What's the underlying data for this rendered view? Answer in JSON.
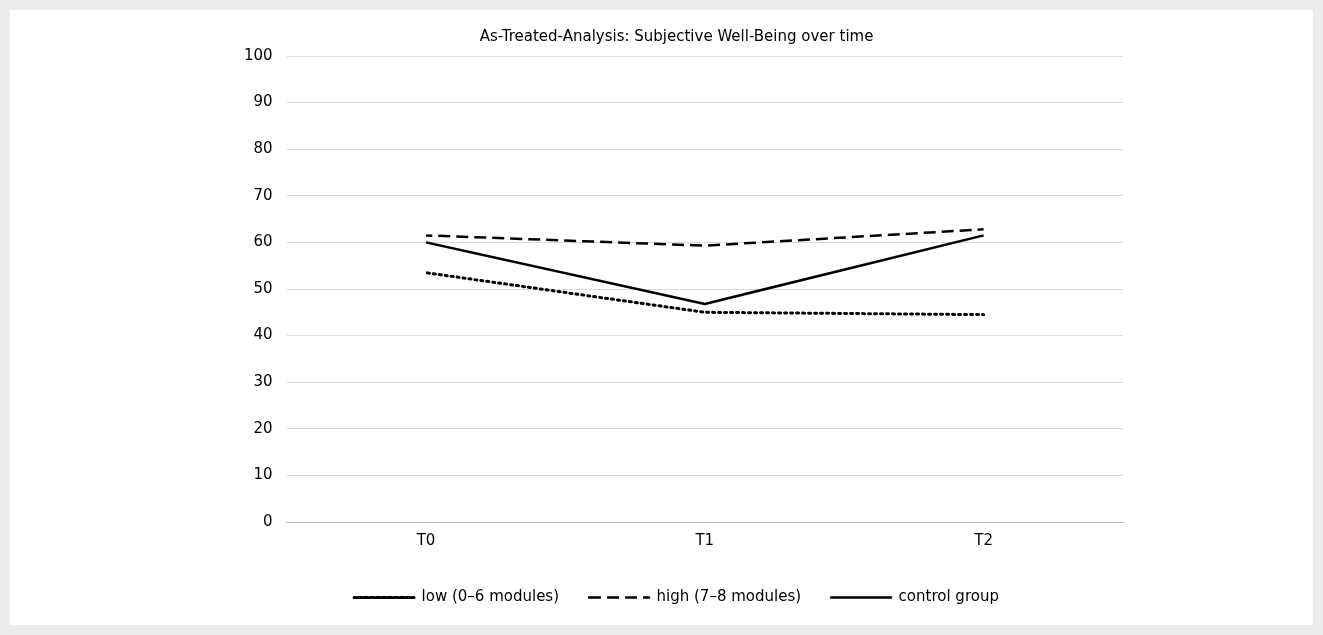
{
  "chart_data": {
    "type": "line",
    "title": "As-Treated-Analysis: Subjective Well-Being over time",
    "categories": [
      "T0",
      "T1",
      "T2"
    ],
    "series": [
      {
        "name": "low (0–6 modules)",
        "color": "#000000",
        "line_style": "dotted",
        "values": [
          53.5,
          45,
          44.5
        ]
      },
      {
        "name": "high (7–8 modules)",
        "color": "#000000",
        "line_style": "dashed",
        "values": [
          61.5,
          59.3,
          62.8
        ]
      },
      {
        "name": "control group",
        "color": "#000000",
        "line_style": "solid",
        "values": [
          60,
          46.8,
          61.5
        ]
      }
    ],
    "ylim": [
      0,
      100
    ],
    "yticks": [
      0,
      10,
      20,
      30,
      40,
      50,
      60,
      70,
      80,
      90,
      100
    ],
    "grid": "y",
    "legend": "bottom",
    "marker": "none"
  }
}
